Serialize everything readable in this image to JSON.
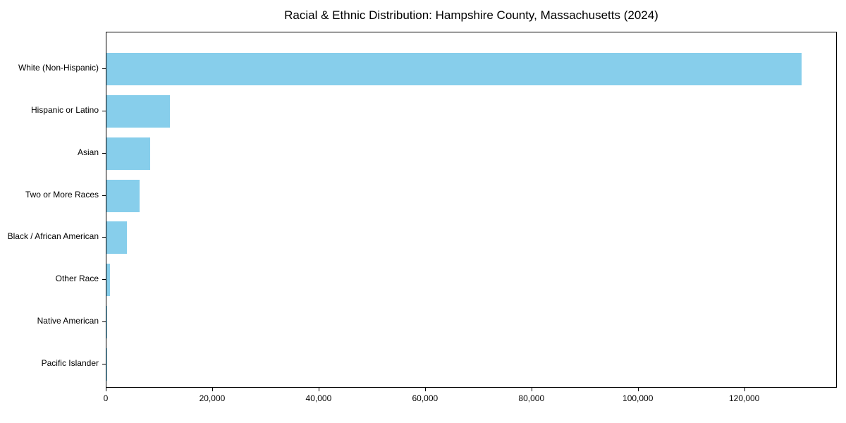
{
  "chart_data": {
    "type": "bar",
    "orientation": "horizontal",
    "title": "Racial & Ethnic Distribution: Hampshire County, Massachusetts (2024)",
    "categories": [
      "White (Non-Hispanic)",
      "Hispanic or Latino",
      "Asian",
      "Two or More Races",
      "Black / African American",
      "Other Race",
      "Native American",
      "Pacific Islander"
    ],
    "values": [
      130600,
      11900,
      8200,
      6200,
      3900,
      600,
      50,
      20
    ],
    "xlabel": "",
    "ylabel": "",
    "xlim": [
      0,
      137400
    ],
    "x_ticks": [
      0,
      20000,
      40000,
      60000,
      80000,
      100000,
      120000
    ],
    "x_tick_labels": [
      "0",
      "20,000",
      "40,000",
      "60,000",
      "80,000",
      "100,000",
      "120,000"
    ],
    "bar_color": "#87CEEB",
    "axis_color": "#000000",
    "grid": false,
    "legend": "none"
  }
}
